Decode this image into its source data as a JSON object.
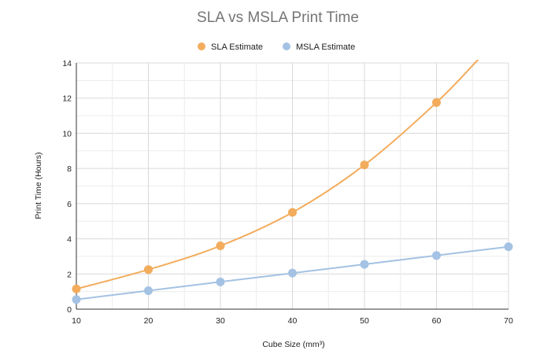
{
  "chart_data": {
    "type": "line",
    "title": "SLA vs MSLA Print Time",
    "xlabel": "Cube Size (mm³)",
    "ylabel": "Print Time (Hours)",
    "x": [
      10,
      20,
      30,
      40,
      50,
      60,
      70
    ],
    "xlim": [
      10,
      70
    ],
    "ylim": [
      0,
      14
    ],
    "x_ticks": [
      10,
      20,
      30,
      40,
      50,
      60,
      70
    ],
    "y_ticks": [
      0,
      2,
      4,
      6,
      8,
      10,
      12,
      14
    ],
    "grid": true,
    "legend_position": "top",
    "series": [
      {
        "name": "SLA Estimate",
        "color": "#f2ac5c",
        "points": [
          [
            10,
            1.15
          ],
          [
            20,
            2.25
          ],
          [
            30,
            3.6
          ],
          [
            40,
            5.5
          ],
          [
            50,
            8.2
          ],
          [
            60,
            11.75
          ]
        ],
        "trend_end": [
          65.8,
          14.2
        ]
      },
      {
        "name": "MSLA Estimate",
        "color": "#a4c2e3",
        "points": [
          [
            10,
            0.55
          ],
          [
            20,
            1.05
          ],
          [
            30,
            1.55
          ],
          [
            40,
            2.05
          ],
          [
            50,
            2.55
          ],
          [
            60,
            3.05
          ],
          [
            70,
            3.55
          ]
        ]
      }
    ]
  }
}
